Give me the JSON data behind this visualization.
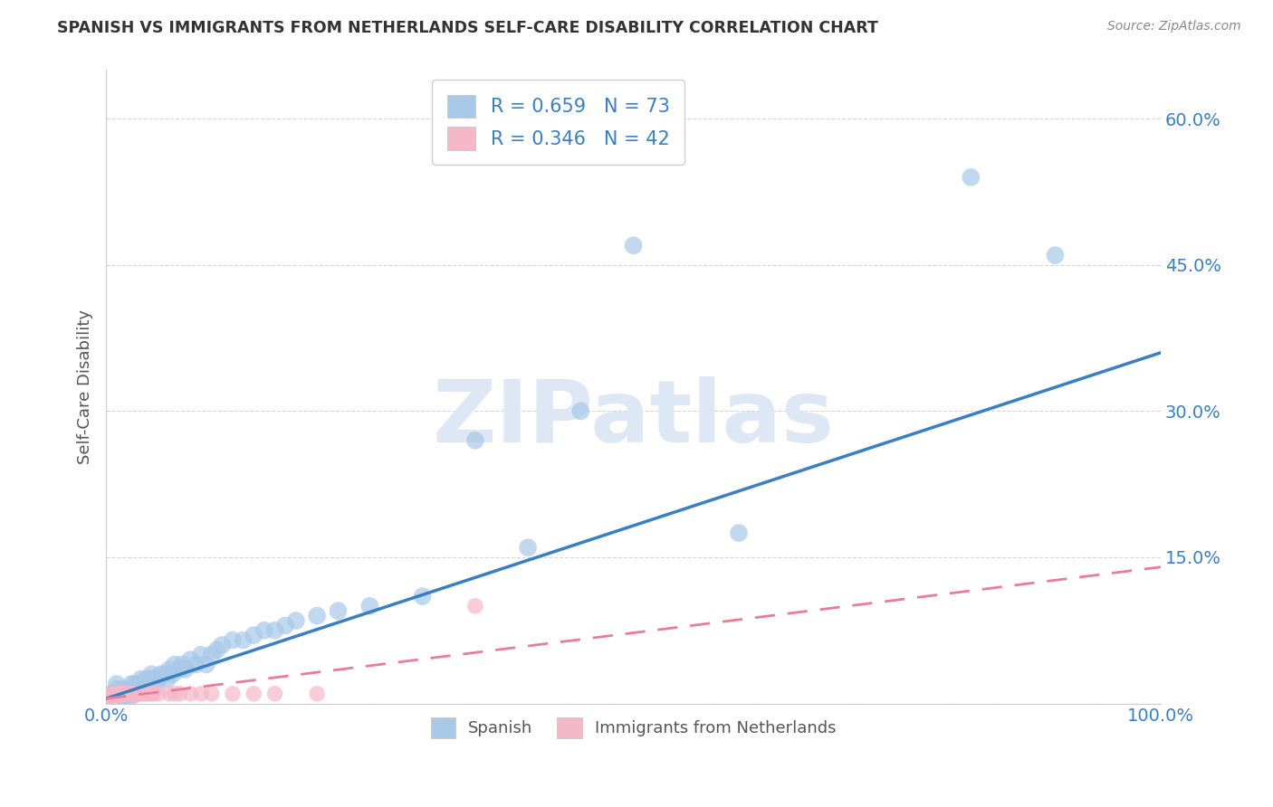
{
  "title": "SPANISH VS IMMIGRANTS FROM NETHERLANDS SELF-CARE DISABILITY CORRELATION CHART",
  "source": "Source: ZipAtlas.com",
  "ylabel": "Self-Care Disability",
  "xlim": [
    0,
    1.0
  ],
  "ylim": [
    0,
    0.65
  ],
  "ytick_vals": [
    0.0,
    0.15,
    0.3,
    0.45,
    0.6
  ],
  "ytick_labels": [
    "",
    "15.0%",
    "30.0%",
    "45.0%",
    "60.0%"
  ],
  "xtick_vals": [
    0.0,
    1.0
  ],
  "xtick_labels": [
    "0.0%",
    "100.0%"
  ],
  "spanish_color": "#a8c8e8",
  "netherlands_color": "#f4b8c8",
  "line_spanish_color": "#3a7fc1",
  "line_netherlands_color": "#e87d9a",
  "R_spanish": 0.659,
  "N_spanish": 73,
  "R_netherlands": 0.346,
  "N_netherlands": 42,
  "watermark": "ZIPatlas",
  "spanish_x": [
    0.005,
    0.005,
    0.005,
    0.007,
    0.008,
    0.009,
    0.01,
    0.01,
    0.01,
    0.01,
    0.012,
    0.013,
    0.014,
    0.015,
    0.015,
    0.016,
    0.018,
    0.019,
    0.02,
    0.021,
    0.022,
    0.022,
    0.024,
    0.025,
    0.026,
    0.027,
    0.028,
    0.03,
    0.031,
    0.033,
    0.035,
    0.037,
    0.038,
    0.04,
    0.042,
    0.043,
    0.045,
    0.047,
    0.05,
    0.052,
    0.055,
    0.058,
    0.06,
    0.063,
    0.065,
    0.07,
    0.072,
    0.075,
    0.08,
    0.085,
    0.09,
    0.095,
    0.1,
    0.105,
    0.11,
    0.12,
    0.13,
    0.14,
    0.15,
    0.16,
    0.17,
    0.18,
    0.2,
    0.22,
    0.25,
    0.3,
    0.35,
    0.4,
    0.45,
    0.5,
    0.6,
    0.82,
    0.9
  ],
  "spanish_y": [
    0.005,
    0.008,
    0.01,
    0.005,
    0.008,
    0.01,
    0.005,
    0.01,
    0.015,
    0.02,
    0.008,
    0.005,
    0.01,
    0.008,
    0.015,
    0.01,
    0.005,
    0.012,
    0.01,
    0.005,
    0.015,
    0.01,
    0.02,
    0.01,
    0.015,
    0.02,
    0.01,
    0.015,
    0.02,
    0.025,
    0.015,
    0.02,
    0.025,
    0.02,
    0.025,
    0.03,
    0.025,
    0.02,
    0.025,
    0.03,
    0.03,
    0.025,
    0.035,
    0.03,
    0.04,
    0.035,
    0.04,
    0.035,
    0.045,
    0.04,
    0.05,
    0.04,
    0.05,
    0.055,
    0.06,
    0.065,
    0.065,
    0.07,
    0.075,
    0.075,
    0.08,
    0.085,
    0.09,
    0.095,
    0.1,
    0.11,
    0.27,
    0.16,
    0.3,
    0.47,
    0.175,
    0.54,
    0.46
  ],
  "netherlands_x": [
    0.003,
    0.004,
    0.005,
    0.006,
    0.006,
    0.007,
    0.007,
    0.008,
    0.009,
    0.01,
    0.011,
    0.012,
    0.013,
    0.014,
    0.015,
    0.017,
    0.018,
    0.019,
    0.02,
    0.022,
    0.024,
    0.025,
    0.027,
    0.03,
    0.033,
    0.035,
    0.038,
    0.04,
    0.043,
    0.045,
    0.05,
    0.06,
    0.065,
    0.07,
    0.08,
    0.09,
    0.1,
    0.12,
    0.14,
    0.16,
    0.2,
    0.35
  ],
  "netherlands_y": [
    0.005,
    0.008,
    0.005,
    0.01,
    0.005,
    0.008,
    0.01,
    0.005,
    0.008,
    0.01,
    0.008,
    0.01,
    0.008,
    0.01,
    0.01,
    0.01,
    0.01,
    0.01,
    0.01,
    0.01,
    0.01,
    0.01,
    0.008,
    0.01,
    0.01,
    0.01,
    0.01,
    0.01,
    0.01,
    0.01,
    0.01,
    0.01,
    0.01,
    0.01,
    0.01,
    0.01,
    0.01,
    0.01,
    0.01,
    0.01,
    0.01,
    0.1
  ],
  "line_spanish_slope": 0.355,
  "line_spanish_intercept": 0.005,
  "line_netherlands_slope": 0.135,
  "line_netherlands_intercept": 0.005
}
